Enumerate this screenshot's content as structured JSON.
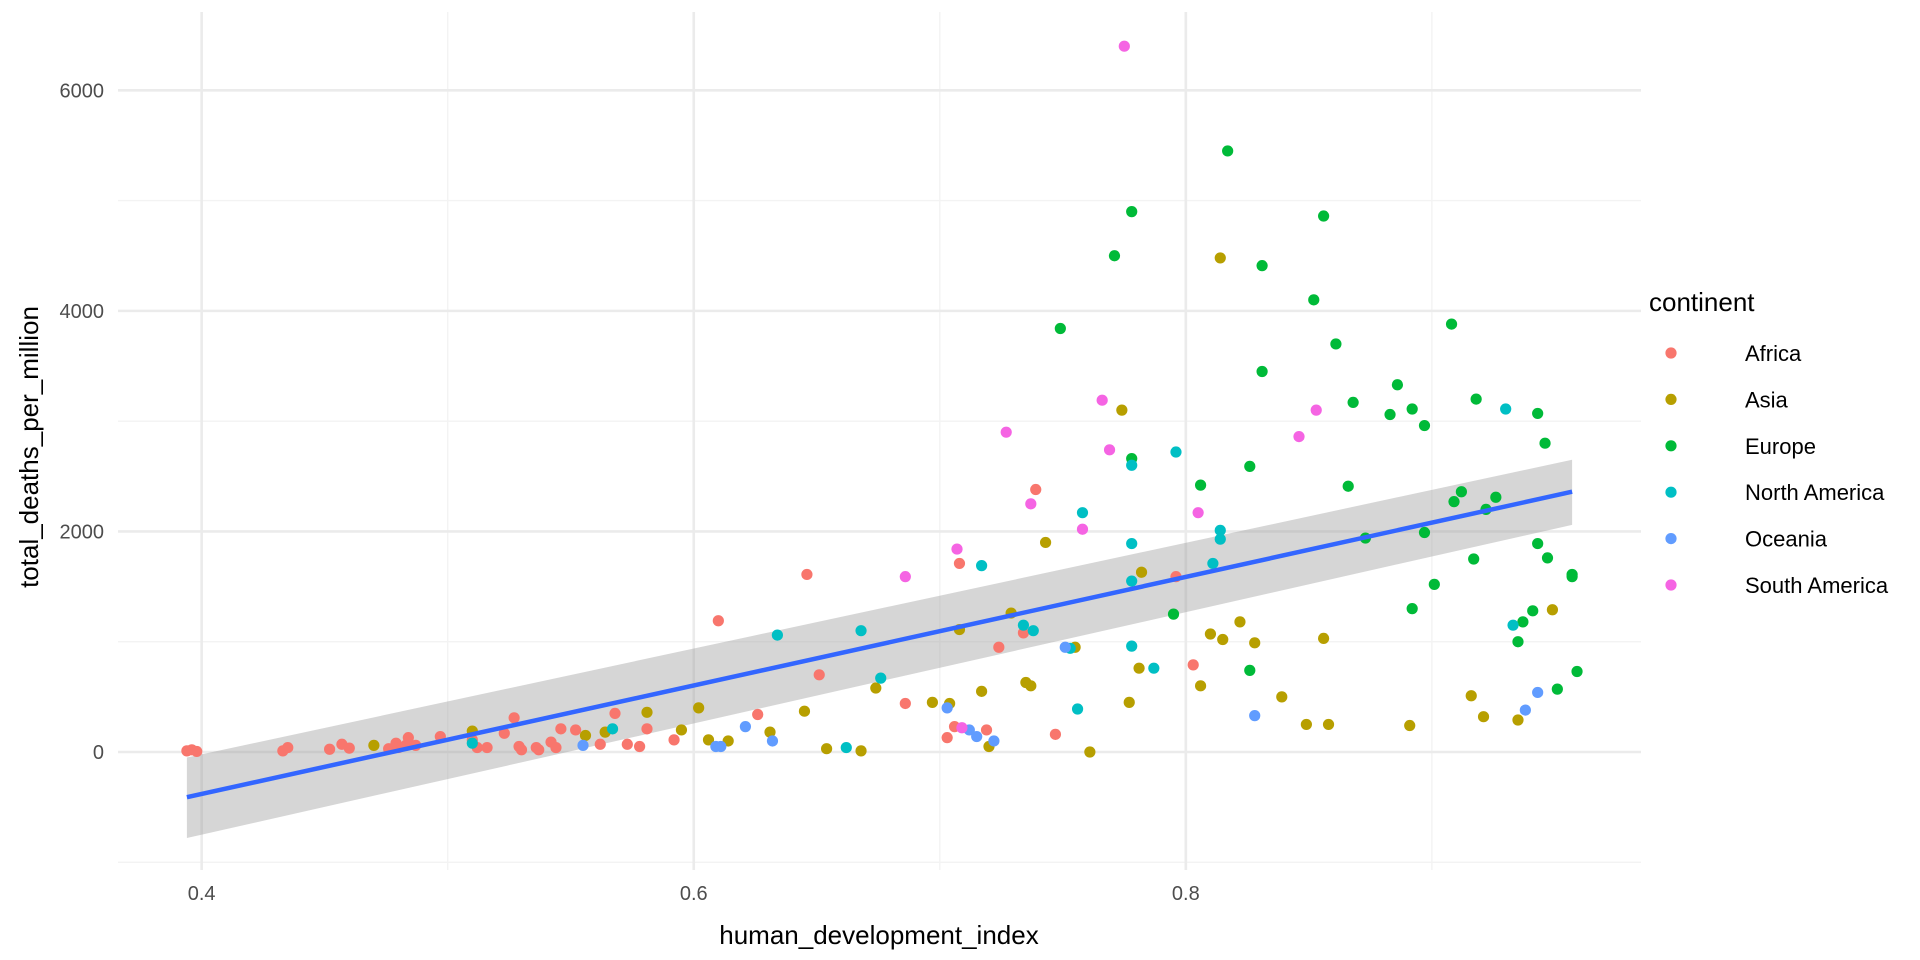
{
  "chart_data": {
    "type": "scatter",
    "xlabel": "human_development_index",
    "ylabel": "total_deaths_per_million",
    "xlim": [
      0.366,
      0.985
    ],
    "ylim": [
      -1070,
      6710
    ],
    "x_ticks": [
      0.4,
      0.6,
      0.8
    ],
    "x_minor_ticks": [
      0.5,
      0.7,
      0.9
    ],
    "x_tick_labels": [
      "0.4",
      "0.6",
      "0.8"
    ],
    "y_ticks": [
      0,
      2000,
      4000,
      6000
    ],
    "y_minor_ticks": [
      -1000,
      1000,
      3000,
      5000
    ],
    "y_tick_labels": [
      "0",
      "2000",
      "4000",
      "6000"
    ],
    "grid": true,
    "legend": {
      "title": "continent",
      "position": "right"
    },
    "colors": {
      "grid_major": "#ebebeb",
      "grid_minor": "#f3f3f3",
      "smooth_line": "#3366ff",
      "ribbon": "#999999"
    },
    "smooth": {
      "method": "linear",
      "x": [
        0.394,
        0.957
      ],
      "y": [
        -410,
        2360
      ],
      "ci_lower": [
        -780,
        2060
      ],
      "ci_upper": [
        -50,
        2650
      ]
    },
    "series": [
      {
        "name": "Africa",
        "color": "#F8766D",
        "points": [
          [
            0.394,
            10
          ],
          [
            0.396,
            20
          ],
          [
            0.398,
            5
          ],
          [
            0.433,
            10
          ],
          [
            0.435,
            40
          ],
          [
            0.452,
            25
          ],
          [
            0.457,
            70
          ],
          [
            0.46,
            35
          ],
          [
            0.476,
            30
          ],
          [
            0.479,
            80
          ],
          [
            0.48,
            40
          ],
          [
            0.483,
            60
          ],
          [
            0.484,
            130
          ],
          [
            0.487,
            60
          ],
          [
            0.497,
            140
          ],
          [
            0.51,
            110
          ],
          [
            0.512,
            40
          ],
          [
            0.516,
            40
          ],
          [
            0.523,
            170
          ],
          [
            0.527,
            310
          ],
          [
            0.529,
            50
          ],
          [
            0.53,
            20
          ],
          [
            0.536,
            40
          ],
          [
            0.537,
            20
          ],
          [
            0.542,
            90
          ],
          [
            0.544,
            40
          ],
          [
            0.546,
            210
          ],
          [
            0.552,
            200
          ],
          [
            0.562,
            70
          ],
          [
            0.568,
            350
          ],
          [
            0.573,
            70
          ],
          [
            0.578,
            50
          ],
          [
            0.581,
            210
          ],
          [
            0.592,
            110
          ],
          [
            0.61,
            1190
          ],
          [
            0.626,
            340
          ],
          [
            0.646,
            1610
          ],
          [
            0.651,
            700
          ],
          [
            0.686,
            440
          ],
          [
            0.703,
            130
          ],
          [
            0.706,
            230
          ],
          [
            0.708,
            1710
          ],
          [
            0.719,
            200
          ],
          [
            0.724,
            950
          ],
          [
            0.734,
            1080
          ],
          [
            0.739,
            2380
          ],
          [
            0.747,
            160
          ],
          [
            0.796,
            1590
          ],
          [
            0.803,
            790
          ]
        ]
      },
      {
        "name": "Asia",
        "color": "#B79F00",
        "points": [
          [
            0.47,
            60
          ],
          [
            0.51,
            190
          ],
          [
            0.556,
            150
          ],
          [
            0.564,
            180
          ],
          [
            0.581,
            360
          ],
          [
            0.595,
            200
          ],
          [
            0.602,
            400
          ],
          [
            0.606,
            110
          ],
          [
            0.614,
            100
          ],
          [
            0.631,
            180
          ],
          [
            0.645,
            370
          ],
          [
            0.654,
            30
          ],
          [
            0.668,
            10
          ],
          [
            0.674,
            580
          ],
          [
            0.697,
            450
          ],
          [
            0.704,
            440
          ],
          [
            0.708,
            1110
          ],
          [
            0.717,
            550
          ],
          [
            0.72,
            50
          ],
          [
            0.729,
            1260
          ],
          [
            0.735,
            630
          ],
          [
            0.737,
            600
          ],
          [
            0.743,
            1900
          ],
          [
            0.755,
            950
          ],
          [
            0.761,
            0
          ],
          [
            0.774,
            3100
          ],
          [
            0.777,
            450
          ],
          [
            0.781,
            760
          ],
          [
            0.782,
            1630
          ],
          [
            0.806,
            600
          ],
          [
            0.81,
            1070
          ],
          [
            0.814,
            4480
          ],
          [
            0.815,
            1020
          ],
          [
            0.822,
            1180
          ],
          [
            0.828,
            990
          ],
          [
            0.839,
            500
          ],
          [
            0.849,
            250
          ],
          [
            0.856,
            1030
          ],
          [
            0.858,
            250
          ],
          [
            0.891,
            240
          ],
          [
            0.916,
            510
          ],
          [
            0.921,
            320
          ],
          [
            0.935,
            290
          ],
          [
            0.949,
            1290
          ]
        ]
      },
      {
        "name": "Europe",
        "color": "#00BA38",
        "points": [
          [
            0.749,
            3840
          ],
          [
            0.771,
            4500
          ],
          [
            0.778,
            4900
          ],
          [
            0.778,
            2660
          ],
          [
            0.795,
            1250
          ],
          [
            0.806,
            2420
          ],
          [
            0.817,
            5450
          ],
          [
            0.826,
            740
          ],
          [
            0.826,
            2590
          ],
          [
            0.831,
            3450
          ],
          [
            0.831,
            4410
          ],
          [
            0.852,
            4100
          ],
          [
            0.856,
            4860
          ],
          [
            0.861,
            3700
          ],
          [
            0.866,
            2410
          ],
          [
            0.868,
            3170
          ],
          [
            0.873,
            1940
          ],
          [
            0.883,
            3060
          ],
          [
            0.886,
            3330
          ],
          [
            0.892,
            1300
          ],
          [
            0.892,
            3110
          ],
          [
            0.897,
            1990
          ],
          [
            0.897,
            2960
          ],
          [
            0.901,
            1520
          ],
          [
            0.908,
            3880
          ],
          [
            0.909,
            2270
          ],
          [
            0.912,
            2360
          ],
          [
            0.917,
            1750
          ],
          [
            0.918,
            3200
          ],
          [
            0.922,
            2200
          ],
          [
            0.926,
            2310
          ],
          [
            0.935,
            1000
          ],
          [
            0.937,
            1180
          ],
          [
            0.941,
            1280
          ],
          [
            0.943,
            1890
          ],
          [
            0.947,
            1760
          ],
          [
            0.946,
            2800
          ],
          [
            0.943,
            3070
          ],
          [
            0.951,
            570
          ],
          [
            0.957,
            1590
          ],
          [
            0.957,
            1610
          ],
          [
            0.959,
            730
          ]
        ]
      },
      {
        "name": "North America",
        "color": "#00BFC4",
        "points": [
          [
            0.51,
            80
          ],
          [
            0.567,
            210
          ],
          [
            0.634,
            1060
          ],
          [
            0.662,
            40
          ],
          [
            0.668,
            1100
          ],
          [
            0.676,
            670
          ],
          [
            0.717,
            1690
          ],
          [
            0.734,
            1150
          ],
          [
            0.738,
            1100
          ],
          [
            0.753,
            940
          ],
          [
            0.756,
            390
          ],
          [
            0.758,
            2170
          ],
          [
            0.778,
            1890
          ],
          [
            0.778,
            2600
          ],
          [
            0.778,
            960
          ],
          [
            0.778,
            1550
          ],
          [
            0.787,
            760
          ],
          [
            0.796,
            2720
          ],
          [
            0.811,
            1710
          ],
          [
            0.814,
            2010
          ],
          [
            0.814,
            1930
          ],
          [
            0.93,
            3110
          ],
          [
            0.933,
            1150
          ]
        ]
      },
      {
        "name": "Oceania",
        "color": "#619CFF",
        "points": [
          [
            0.555,
            60
          ],
          [
            0.609,
            50
          ],
          [
            0.611,
            50
          ],
          [
            0.621,
            230
          ],
          [
            0.632,
            100
          ],
          [
            0.703,
            400
          ],
          [
            0.712,
            200
          ],
          [
            0.715,
            140
          ],
          [
            0.722,
            100
          ],
          [
            0.751,
            950
          ],
          [
            0.828,
            330
          ],
          [
            0.938,
            380
          ],
          [
            0.943,
            540
          ]
        ]
      },
      {
        "name": "South America",
        "color": "#F564E3",
        "points": [
          [
            0.686,
            1590
          ],
          [
            0.707,
            1840
          ],
          [
            0.709,
            220
          ],
          [
            0.727,
            2900
          ],
          [
            0.737,
            2250
          ],
          [
            0.758,
            2020
          ],
          [
            0.766,
            3190
          ],
          [
            0.769,
            2740
          ],
          [
            0.775,
            6400
          ],
          [
            0.805,
            2170
          ],
          [
            0.846,
            2860
          ],
          [
            0.853,
            3100
          ]
        ]
      }
    ]
  }
}
